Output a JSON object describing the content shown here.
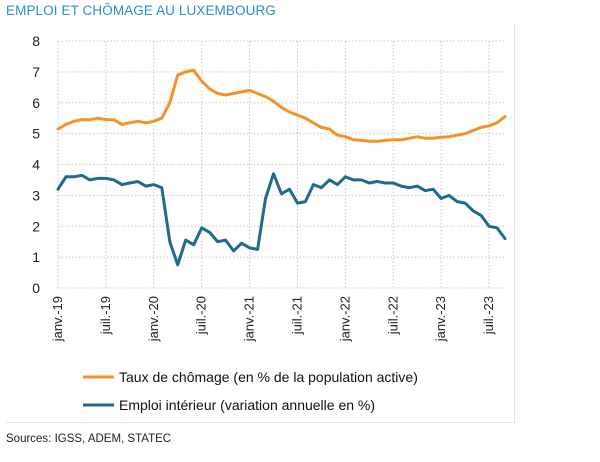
{
  "header": {
    "title": "EMPLOI ET CHÔMAGE AU LUXEMBOURG"
  },
  "footer": {
    "source": "Sources: IGSS, ADEM, STATEC"
  },
  "colors": {
    "title": "#2a8fc4",
    "grid": "#c8c8c8",
    "unemployment": "#f39323",
    "employment": "#1f6b8a"
  },
  "chart_data": {
    "type": "line",
    "title": "EMPLOI ET CHÔMAGE AU LUXEMBOURG",
    "ylim": [
      0,
      8
    ],
    "yticks": [
      0,
      1,
      2,
      3,
      4,
      5,
      6,
      7,
      8
    ],
    "grid": true,
    "legend_position": "bottom",
    "x": [
      "2019-01",
      "2019-02",
      "2019-03",
      "2019-04",
      "2019-05",
      "2019-06",
      "2019-07",
      "2019-08",
      "2019-09",
      "2019-10",
      "2019-11",
      "2019-12",
      "2020-01",
      "2020-02",
      "2020-03",
      "2020-04",
      "2020-05",
      "2020-06",
      "2020-07",
      "2020-08",
      "2020-09",
      "2020-10",
      "2020-11",
      "2020-12",
      "2021-01",
      "2021-02",
      "2021-03",
      "2021-04",
      "2021-05",
      "2021-06",
      "2021-07",
      "2021-08",
      "2021-09",
      "2021-10",
      "2021-11",
      "2021-12",
      "2022-01",
      "2022-02",
      "2022-03",
      "2022-04",
      "2022-05",
      "2022-06",
      "2022-07",
      "2022-08",
      "2022-09",
      "2022-10",
      "2022-11",
      "2022-12",
      "2023-01",
      "2023-02",
      "2023-03",
      "2023-04",
      "2023-05",
      "2023-06",
      "2023-07",
      "2023-08",
      "2023-09"
    ],
    "xtick_labels": [
      {
        "label": "janv.-19",
        "x": "2019-01"
      },
      {
        "label": "juil.-19",
        "x": "2019-07"
      },
      {
        "label": "janv.-20",
        "x": "2020-01"
      },
      {
        "label": "juil.-20",
        "x": "2020-07"
      },
      {
        "label": "janv.-21",
        "x": "2021-01"
      },
      {
        "label": "juil.-21",
        "x": "2021-07"
      },
      {
        "label": "janv.-22",
        "x": "2022-01"
      },
      {
        "label": "juil.-22",
        "x": "2022-07"
      },
      {
        "label": "janv.-23",
        "x": "2023-01"
      },
      {
        "label": "juil.-23",
        "x": "2023-07"
      }
    ],
    "series": [
      {
        "name": "Taux de chômage (en % de la population active)",
        "color": "#f39323",
        "values": [
          5.15,
          5.3,
          5.4,
          5.45,
          5.45,
          5.5,
          5.45,
          5.45,
          5.3,
          5.35,
          5.4,
          5.35,
          5.4,
          5.5,
          6.0,
          6.9,
          7.0,
          7.05,
          6.7,
          6.45,
          6.3,
          6.25,
          6.3,
          6.35,
          6.4,
          6.3,
          6.2,
          6.05,
          5.85,
          5.7,
          5.6,
          5.5,
          5.35,
          5.2,
          5.15,
          4.95,
          4.9,
          4.8,
          4.78,
          4.75,
          4.75,
          4.78,
          4.8,
          4.8,
          4.85,
          4.9,
          4.85,
          4.85,
          4.88,
          4.9,
          4.95,
          5.0,
          5.1,
          5.2,
          5.25,
          5.35,
          5.55
        ]
      },
      {
        "name": "Emploi intérieur (variation annuelle en %)",
        "color": "#1f6b8a",
        "values": [
          3.2,
          3.6,
          3.6,
          3.65,
          3.5,
          3.55,
          3.55,
          3.5,
          3.35,
          3.4,
          3.45,
          3.3,
          3.35,
          3.25,
          1.5,
          0.75,
          1.55,
          1.4,
          1.95,
          1.8,
          1.5,
          1.55,
          1.2,
          1.45,
          1.3,
          1.25,
          2.9,
          3.7,
          3.05,
          3.2,
          2.75,
          2.8,
          3.35,
          3.25,
          3.5,
          3.35,
          3.6,
          3.5,
          3.5,
          3.4,
          3.45,
          3.4,
          3.4,
          3.3,
          3.25,
          3.3,
          3.15,
          3.2,
          2.9,
          3.0,
          2.8,
          2.75,
          2.5,
          2.35,
          2.0,
          1.95,
          1.6
        ]
      }
    ]
  }
}
